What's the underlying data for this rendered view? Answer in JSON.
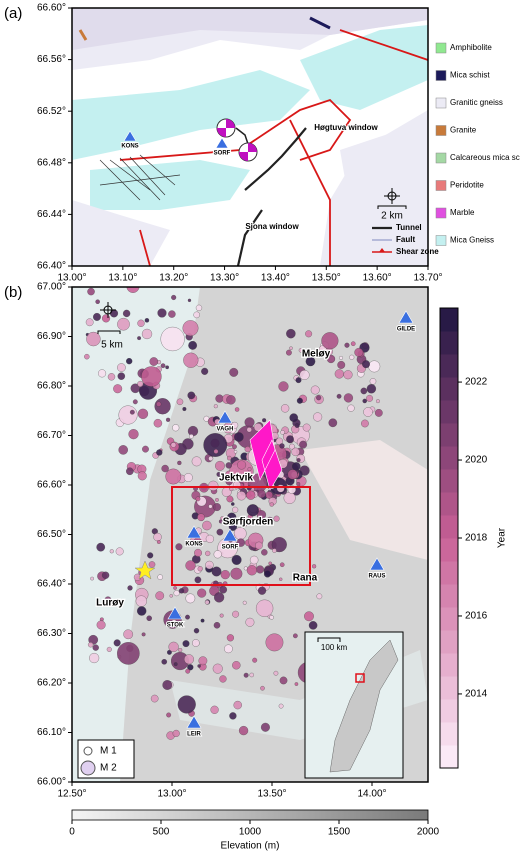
{
  "panel_a": {
    "label": "(a)",
    "yticks": [
      {
        "value": 66.4,
        "label": "66.40°"
      },
      {
        "value": 66.44,
        "label": "66.44°"
      },
      {
        "value": 66.48,
        "label": "66.48°"
      },
      {
        "value": 66.52,
        "label": "66.52°"
      },
      {
        "value": 66.56,
        "label": "66.56°"
      },
      {
        "value": 66.6,
        "label": "66.60°"
      }
    ],
    "xticks": [
      {
        "value": 13.0,
        "label": "13.00°"
      },
      {
        "value": 13.1,
        "label": "13.10°"
      },
      {
        "value": 13.2,
        "label": "13.20°"
      },
      {
        "value": 13.3,
        "label": "13.30°"
      },
      {
        "value": 13.4,
        "label": "13.40°"
      },
      {
        "value": 13.5,
        "label": "13.50°"
      },
      {
        "value": 13.6,
        "label": "13.60°"
      },
      {
        "value": 13.7,
        "label": "13.70°"
      }
    ],
    "legend": [
      {
        "name": "Amphibolite",
        "color": "#90e890"
      },
      {
        "name": "Mica schist",
        "color": "#1c1a5a"
      },
      {
        "name": "Granitic gneiss",
        "color": "#ecebf5"
      },
      {
        "name": "Granite",
        "color": "#c87a3a"
      },
      {
        "name": "Calcareous mica schist",
        "color": "#a4d8a4"
      },
      {
        "name": "Peridotite",
        "color": "#e87a7a"
      },
      {
        "name": "Marble",
        "color": "#e050e0"
      },
      {
        "name": "Mica Gneiss",
        "color": "#c4f0f0"
      }
    ],
    "labels": [
      "Høgtuva window",
      "Sjona window"
    ],
    "stations": [
      "KONS",
      "SORF"
    ],
    "scale": "2 km",
    "line_legend": [
      "Tunnel",
      "Fault",
      "Shear zone"
    ]
  },
  "panel_b": {
    "label": "(b)",
    "xlim": [
      12.5,
      14.28
    ],
    "ylim": [
      66.0,
      67.0
    ],
    "yticks": [
      {
        "value": 66.0,
        "label": "66.00°"
      },
      {
        "value": 66.1,
        "label": "66.10°"
      },
      {
        "value": 66.2,
        "label": "66.20°"
      },
      {
        "value": 66.3,
        "label": "66.30°"
      },
      {
        "value": 66.4,
        "label": "66.40°"
      },
      {
        "value": 66.5,
        "label": "66.50°"
      },
      {
        "value": 66.6,
        "label": "66.60°"
      },
      {
        "value": 66.7,
        "label": "66.70°"
      },
      {
        "value": 66.8,
        "label": "66.80°"
      },
      {
        "value": 66.9,
        "label": "66.90°"
      },
      {
        "value": 67.0,
        "label": "67.00°"
      }
    ],
    "xticks": [
      {
        "value": 12.5,
        "label": "12.50°"
      },
      {
        "value": 13.0,
        "label": "13.00°"
      },
      {
        "value": 13.5,
        "label": "13.50°"
      },
      {
        "value": 14.0,
        "label": "14.00°"
      }
    ],
    "places": [
      "Meløy",
      "Jektvik",
      "Sørfjorden",
      "Rana",
      "Lurøy"
    ],
    "stations": [
      "VAGH",
      "GILDE",
      "KONS",
      "SORF",
      "RAUS",
      "STOK",
      "LEIR"
    ],
    "scale": "5 km",
    "inset_scale": "100 km",
    "magnitude_legend": [
      "M 1",
      "M 2"
    ],
    "colorbar": {
      "label": "Year",
      "lim": [
        2012.1,
        2023.9
      ],
      "ticks": [
        2014,
        2016,
        2018,
        2020,
        2022
      ]
    },
    "elevation": {
      "label": "Elevation (m)",
      "lim": [
        0,
        2000
      ],
      "ticks": [
        0,
        500,
        1000,
        1500,
        2000
      ]
    }
  }
}
